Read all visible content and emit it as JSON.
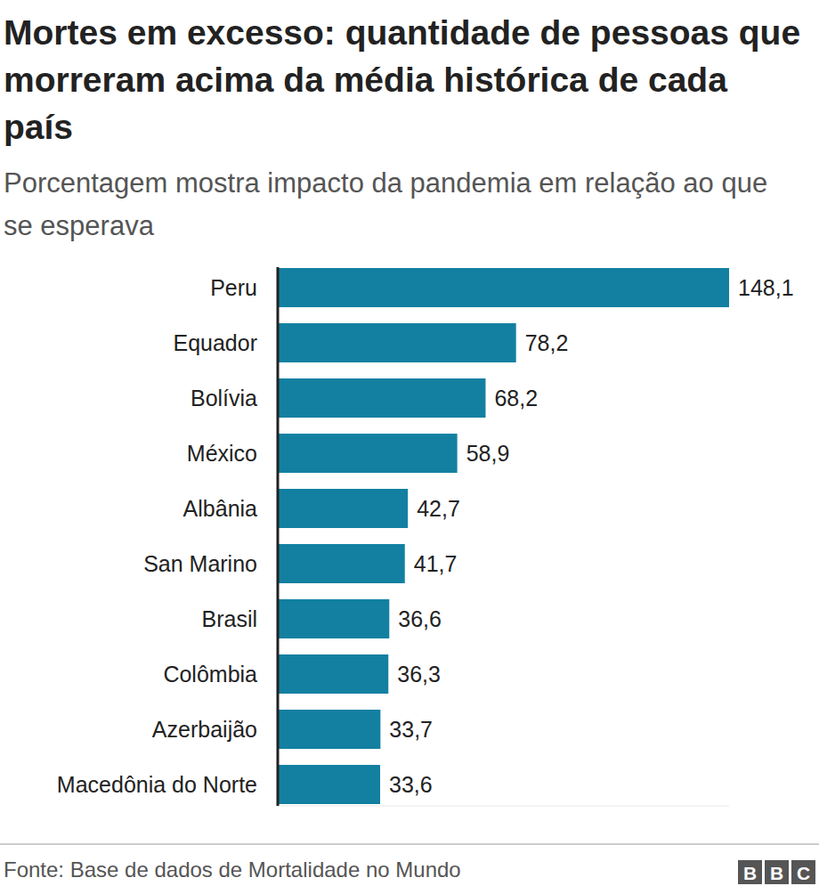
{
  "chart_data": {
    "type": "bar",
    "orientation": "horizontal",
    "title": "Mortes em excesso: quantidade de pessoas que morreram acima da média histórica de cada país",
    "subtitle": "Porcentagem mostra impacto da pandemia em relação ao que se esperava",
    "source": "Fonte: Base de dados de Mortalidade no Mundo",
    "credit": "BBC",
    "categories": [
      "Peru",
      "Equador",
      "Bolívia",
      "México",
      "Albânia",
      "San Marino",
      "Brasil",
      "Colômbia",
      "Azerbaijão",
      "Macedônia do Norte"
    ],
    "values": [
      148.1,
      78.2,
      68.2,
      58.9,
      42.7,
      41.7,
      36.6,
      36.3,
      33.7,
      33.6
    ],
    "value_labels": [
      "148,1",
      "78,2",
      "68,2",
      "58,9",
      "42,7",
      "41,7",
      "36,6",
      "36,3",
      "33,7",
      "33,6"
    ],
    "color": "#1380a1",
    "xlim": [
      0,
      148.1
    ],
    "xticks": [
      0
    ],
    "grid": false,
    "data_labels": true,
    "tick_labels": false
  }
}
